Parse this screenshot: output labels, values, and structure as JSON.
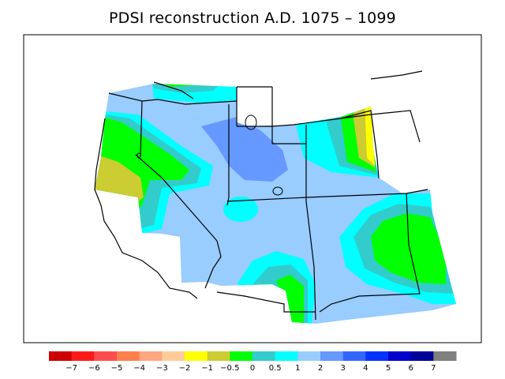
{
  "title": "PDSI reconstruction A.D. 1075 – 1099",
  "legend": {
    "colors": [
      "#cc0000",
      "#ff1a1a",
      "#ff4d4d",
      "#ff7f4d",
      "#ffa680",
      "#ffcc99",
      "#ffff00",
      "#cccc33",
      "#00ff00",
      "#33cccc",
      "#00ffff",
      "#99ccff",
      "#6699ff",
      "#3366ff",
      "#0033ff",
      "#0000cc",
      "#000099",
      "#808080"
    ],
    "tick_labels": [
      "−7",
      "−6",
      "−5",
      "−4",
      "−3",
      "−2",
      "−1",
      "−0.5",
      "0",
      "0.5",
      "1",
      "2",
      "3",
      "4",
      "5",
      "6",
      "7"
    ]
  },
  "palette": {
    "background_field": "#99ccff",
    "wet_moderate": "#6699ff",
    "near_zero_positive": "#00ffff",
    "band_0_to_0_5": "#33cccc",
    "band_minus_0_5_to_0": "#00ff00",
    "band_minus_1_to_minus_0_5": "#cccc33",
    "band_minus_2_to_minus_1": "#ffff00"
  }
}
